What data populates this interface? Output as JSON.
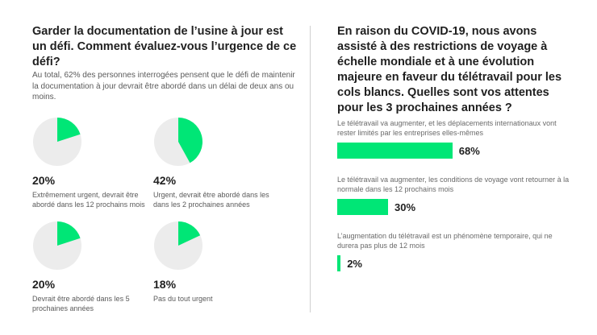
{
  "left": {
    "title": "Garder la documentation de l’usine à jour est un défi. Comment évaluez-vous l’urgence de ce défi?",
    "intro": "Au total, 62% des personnes interrogées pensent que le défi de maintenir la documentation à jour devrait être abordé dans un délai de deux ans ou moins."
  },
  "right": {
    "title": "En raison du COVID-19, nous avons assisté à des restrictions de voyage à échelle mondiale et à une évolution majeure en faveur du télétravail pour les cols blancs. Quelles sont vos attentes pour les 3 prochaines années ?"
  },
  "colors": {
    "accent": "#00e676",
    "pie_bg": "#ececec"
  },
  "chart_data": [
    {
      "type": "pie",
      "slices": [
        {
          "value": 20,
          "label": "20%",
          "description": "Extrêmement urgent, devrait être abordé dans les 12 prochains mois"
        },
        {
          "value": 42,
          "label": "42%",
          "description": "Urgent, devrait être abordé dans les dans les 2 prochaines années"
        },
        {
          "value": 20,
          "label": "20%",
          "description": "Devrait être abordé dans les 5 prochaines années"
        },
        {
          "value": 18,
          "label": "18%",
          "description": "Pas du tout urgent"
        }
      ]
    },
    {
      "type": "bar",
      "orientation": "horizontal",
      "xlim": [
        0,
        100
      ],
      "categories": [
        "Le télétravail va augmenter, et les déplacements internationaux vont rester limités par les entreprises elles-mêmes",
        "Le télétravail va augmenter, les conditions de voyage vont retourner à la normale dans les 12 prochains mois",
        "L’augmentation du télétravail est un phénomène temporaire, qui ne durera pas plus de 12 mois"
      ],
      "values": [
        68,
        30,
        2
      ],
      "value_labels": [
        "68%",
        "30%",
        "2%"
      ]
    }
  ]
}
